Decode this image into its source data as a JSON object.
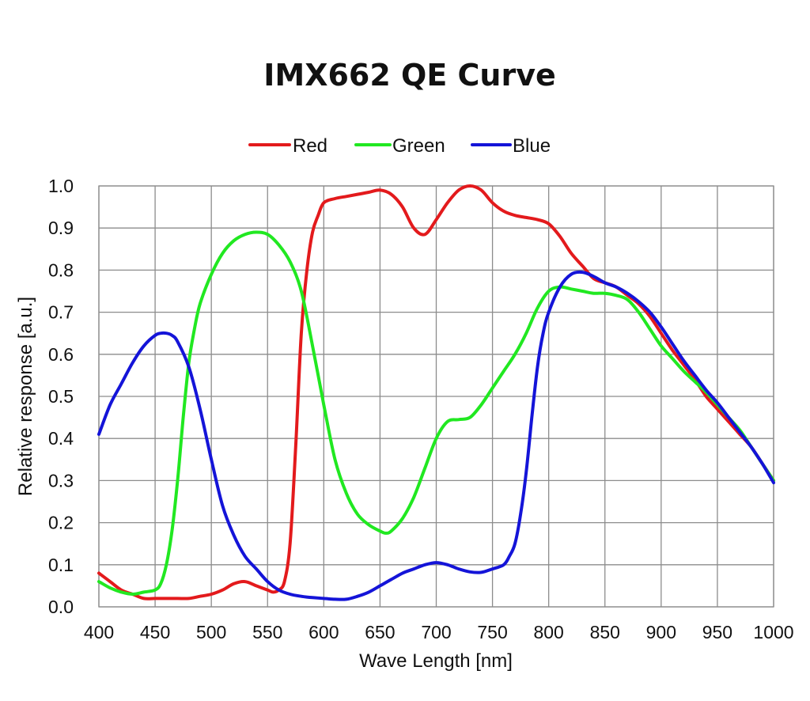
{
  "chart_data": {
    "type": "line",
    "title": "IMX662 QE Curve",
    "xlabel": "Wave Length [nm]",
    "ylabel": "Relative response [a.u.]",
    "xlim": [
      400,
      1000
    ],
    "ylim": [
      0,
      1.0
    ],
    "x_ticks": [
      "400",
      "450",
      "500",
      "550",
      "600",
      "650",
      "700",
      "750",
      "800",
      "850",
      "900",
      "950",
      "1000"
    ],
    "y_ticks": [
      "0.0",
      "0.1",
      "0.2",
      "0.3",
      "0.4",
      "0.5",
      "0.6",
      "0.7",
      "0.8",
      "0.9",
      "1.0"
    ],
    "grid": true,
    "legend": "top",
    "series": [
      {
        "name": "Red",
        "color": "#e31a1c",
        "x": [
          400,
          410,
          420,
          430,
          440,
          450,
          460,
          470,
          480,
          490,
          500,
          510,
          520,
          530,
          540,
          550,
          555,
          560,
          565,
          570,
          575,
          580,
          585,
          590,
          595,
          600,
          610,
          620,
          630,
          640,
          650,
          660,
          670,
          680,
          690,
          700,
          710,
          720,
          730,
          740,
          750,
          760,
          770,
          780,
          790,
          800,
          810,
          820,
          830,
          840,
          850,
          860,
          870,
          880,
          890,
          900,
          910,
          920,
          930,
          940,
          950,
          960,
          970,
          980,
          990,
          1000
        ],
        "y": [
          0.08,
          0.06,
          0.04,
          0.03,
          0.02,
          0.02,
          0.02,
          0.02,
          0.02,
          0.025,
          0.03,
          0.04,
          0.055,
          0.06,
          0.05,
          0.04,
          0.035,
          0.04,
          0.06,
          0.15,
          0.38,
          0.65,
          0.8,
          0.89,
          0.93,
          0.96,
          0.97,
          0.975,
          0.98,
          0.985,
          0.99,
          0.98,
          0.95,
          0.9,
          0.885,
          0.92,
          0.96,
          0.99,
          1.0,
          0.99,
          0.96,
          0.94,
          0.93,
          0.925,
          0.92,
          0.91,
          0.88,
          0.84,
          0.81,
          0.78,
          0.77,
          0.76,
          0.74,
          0.72,
          0.69,
          0.65,
          0.61,
          0.575,
          0.54,
          0.5,
          0.47,
          0.44,
          0.41,
          0.38,
          0.34,
          0.3
        ]
      },
      {
        "name": "Green",
        "color": "#21e821",
        "x": [
          400,
          410,
          420,
          430,
          440,
          450,
          455,
          460,
          465,
          470,
          475,
          480,
          485,
          490,
          500,
          510,
          520,
          530,
          540,
          550,
          560,
          570,
          580,
          590,
          600,
          610,
          620,
          630,
          640,
          650,
          655,
          660,
          670,
          680,
          690,
          700,
          710,
          720,
          730,
          740,
          750,
          760,
          770,
          780,
          790,
          800,
          810,
          820,
          830,
          840,
          850,
          860,
          870,
          880,
          890,
          900,
          910,
          920,
          930,
          940,
          950,
          960,
          970,
          980,
          990,
          1000
        ],
        "y": [
          0.06,
          0.045,
          0.035,
          0.03,
          0.035,
          0.04,
          0.055,
          0.1,
          0.18,
          0.3,
          0.45,
          0.58,
          0.66,
          0.72,
          0.79,
          0.84,
          0.87,
          0.885,
          0.89,
          0.885,
          0.86,
          0.82,
          0.75,
          0.62,
          0.48,
          0.35,
          0.27,
          0.22,
          0.195,
          0.18,
          0.175,
          0.18,
          0.21,
          0.26,
          0.33,
          0.4,
          0.44,
          0.445,
          0.45,
          0.48,
          0.52,
          0.56,
          0.6,
          0.65,
          0.71,
          0.75,
          0.76,
          0.755,
          0.75,
          0.745,
          0.745,
          0.74,
          0.73,
          0.7,
          0.66,
          0.62,
          0.59,
          0.56,
          0.535,
          0.51,
          0.48,
          0.45,
          0.42,
          0.38,
          0.34,
          0.3
        ]
      },
      {
        "name": "Blue",
        "color": "#1414d8",
        "x": [
          400,
          410,
          420,
          430,
          440,
          450,
          455,
          460,
          465,
          470,
          480,
          490,
          500,
          510,
          520,
          530,
          540,
          550,
          560,
          570,
          580,
          590,
          600,
          610,
          620,
          630,
          640,
          650,
          660,
          670,
          680,
          690,
          700,
          710,
          720,
          730,
          740,
          750,
          760,
          765,
          770,
          775,
          780,
          785,
          790,
          795,
          800,
          810,
          820,
          830,
          840,
          850,
          860,
          870,
          880,
          890,
          900,
          910,
          920,
          930,
          940,
          950,
          960,
          970,
          980,
          990,
          1000
        ],
        "y": [
          0.41,
          0.48,
          0.53,
          0.58,
          0.62,
          0.645,
          0.65,
          0.65,
          0.645,
          0.63,
          0.57,
          0.47,
          0.35,
          0.24,
          0.17,
          0.12,
          0.09,
          0.06,
          0.04,
          0.03,
          0.025,
          0.022,
          0.02,
          0.018,
          0.018,
          0.025,
          0.035,
          0.05,
          0.065,
          0.08,
          0.09,
          0.1,
          0.105,
          0.1,
          0.09,
          0.083,
          0.082,
          0.09,
          0.1,
          0.12,
          0.15,
          0.22,
          0.32,
          0.45,
          0.57,
          0.65,
          0.7,
          0.76,
          0.79,
          0.795,
          0.785,
          0.77,
          0.76,
          0.745,
          0.725,
          0.7,
          0.665,
          0.625,
          0.585,
          0.55,
          0.515,
          0.485,
          0.45,
          0.415,
          0.38,
          0.34,
          0.295
        ]
      }
    ]
  }
}
